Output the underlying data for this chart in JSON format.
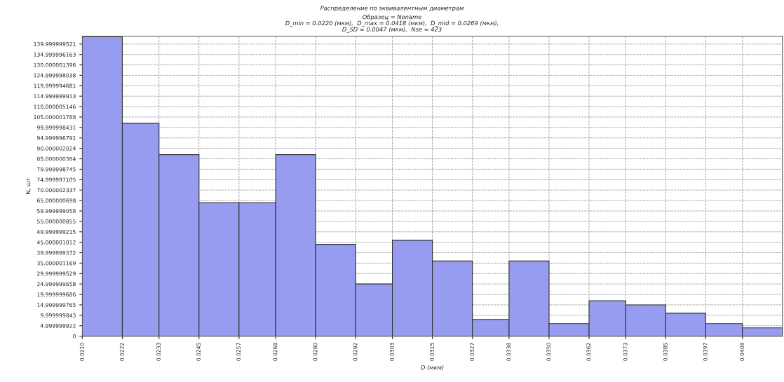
{
  "chart_data": {
    "type": "histogram",
    "title": "Распределение по эквивалентным диаметрам",
    "subtitle": "Образец = Noname\nD_min = 0.0220 (мкм),  D_max = 0.0418 (мкм),  D_mid = 0.0269 (мкм),\nD_SD = 0.0047 (мкм),  Nse = 423",
    "xlabel": "D (мкм)",
    "ylabel": "N, шт",
    "bins": [
      0.021,
      0.0222,
      0.0233,
      0.0245,
      0.0257,
      0.0268,
      0.028,
      0.0292,
      0.0303,
      0.0315,
      0.0327,
      0.0338,
      0.035,
      0.0362,
      0.0373,
      0.0385,
      0.0397,
      0.0408,
      0.042
    ],
    "values": [
      143.5,
      102,
      87,
      64,
      64,
      87,
      44,
      25,
      46,
      36,
      8,
      36,
      6,
      17,
      15,
      11,
      6,
      4
    ],
    "color": "#989cf0",
    "grid": true,
    "xlim": [
      0.021,
      0.042
    ],
    "ylim": [
      0,
      143.7
    ],
    "xticks": [
      {
        "value": 0.021,
        "label": "0.0210"
      },
      {
        "value": 0.0222,
        "label": "0.0222"
      },
      {
        "value": 0.0233,
        "label": "0.0233"
      },
      {
        "value": 0.0245,
        "label": "0.0245"
      },
      {
        "value": 0.0257,
        "label": "0.0257"
      },
      {
        "value": 0.0268,
        "label": "0.0268"
      },
      {
        "value": 0.028,
        "label": "0.0280"
      },
      {
        "value": 0.0292,
        "label": "0.0292"
      },
      {
        "value": 0.0303,
        "label": "0.0303"
      },
      {
        "value": 0.0315,
        "label": "0.0315"
      },
      {
        "value": 0.0327,
        "label": "0.0327"
      },
      {
        "value": 0.0338,
        "label": "0.0338"
      },
      {
        "value": 0.035,
        "label": "0.0350"
      },
      {
        "value": 0.0362,
        "label": "0.0362"
      },
      {
        "value": 0.0373,
        "label": "0.0373"
      },
      {
        "value": 0.0385,
        "label": "0.0385"
      },
      {
        "value": 0.0397,
        "label": "0.0397"
      },
      {
        "value": 0.0408,
        "label": "0.0408"
      }
    ],
    "yticks": [
      0,
      4.999999922,
      9.999999843,
      14.999999765,
      19.999999686,
      24.999999658,
      29.999999529,
      35.000001169,
      39.999999372,
      45.000001012,
      49.999999215,
      55.000000855,
      59.999999058,
      65.000000698,
      70.000002337,
      74.999997105,
      79.999998745,
      85.000000384,
      90.000002024,
      94.999996791,
      99.999998431,
      105.000001788,
      110.000005146,
      114.999999913,
      119.999994681,
      124.999998038,
      130.000001396,
      134.999996163,
      139.999999521
    ]
  }
}
